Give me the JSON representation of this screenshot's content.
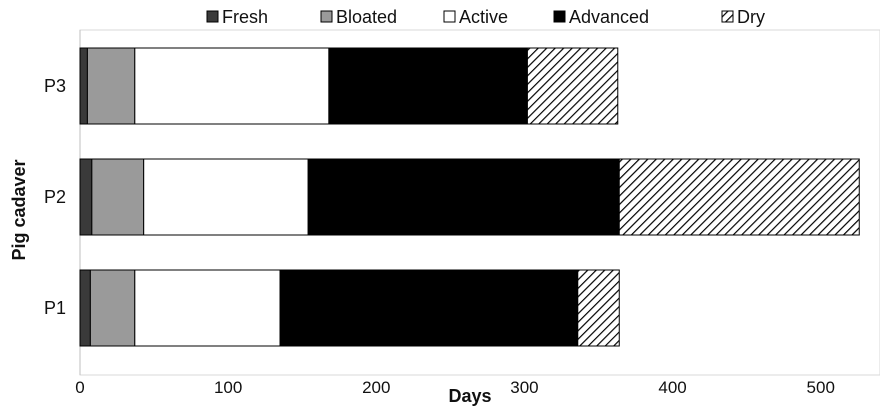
{
  "chart_data": {
    "type": "bar",
    "orientation": "horizontal",
    "stacked": true,
    "categories": [
      "P1",
      "P2",
      "P3"
    ],
    "series": [
      {
        "name": "Fresh",
        "values": [
          7,
          8,
          5
        ],
        "color": "#3a3a3a",
        "pattern": "solid"
      },
      {
        "name": "Bloated",
        "values": [
          30,
          35,
          32
        ],
        "color": "#9a9a9a",
        "pattern": "solid"
      },
      {
        "name": "Active",
        "values": [
          98,
          111,
          131
        ],
        "color": "#ffffff",
        "pattern": "solid"
      },
      {
        "name": "Advanced",
        "values": [
          201,
          210,
          134
        ],
        "color": "#000000",
        "pattern": "solid"
      },
      {
        "name": "Dry",
        "values": [
          28,
          162,
          61
        ],
        "color": "#ffffff",
        "pattern": "diagonal-hatch"
      }
    ],
    "xlabel": "Days",
    "ylabel": "Pig cadaver",
    "xlim": [
      0,
      540
    ],
    "xticks": [
      "0",
      "100",
      "200",
      "300",
      "400",
      "500"
    ],
    "grid": false,
    "legend_position": "top"
  }
}
